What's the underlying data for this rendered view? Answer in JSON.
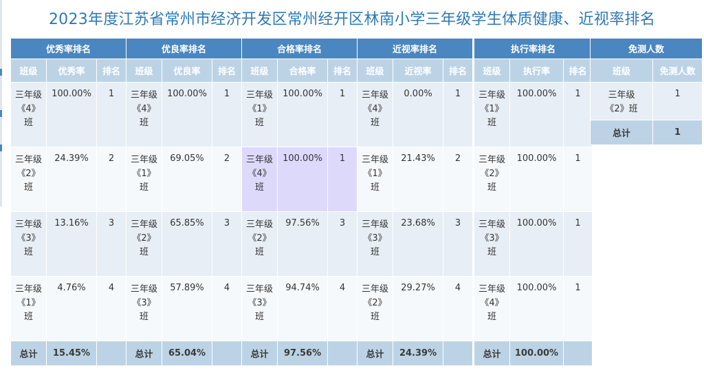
{
  "title": "2023年度江苏省常州市经济开发区常州经开区林南小学三年级学生体质健康、近视率排名",
  "col_headers": {
    "class": "班级",
    "rank": "排名"
  },
  "groups": [
    {
      "name": "优秀率排名",
      "metric": "优秀率",
      "rows": [
        {
          "class": "三年级《4》班",
          "value": "100.00%",
          "rank": "1"
        },
        {
          "class": "三年级《2》班",
          "value": "24.39%",
          "rank": "2"
        },
        {
          "class": "三年级《3》班",
          "value": "13.16%",
          "rank": "3"
        },
        {
          "class": "三年级《1》班",
          "value": "4.76%",
          "rank": "4"
        }
      ],
      "total_label": "总计",
      "total": "15.45%"
    },
    {
      "name": "优良率排名",
      "metric": "优良率",
      "rows": [
        {
          "class": "三年级《4》班",
          "value": "100.00%",
          "rank": "1"
        },
        {
          "class": "三年级《1》班",
          "value": "69.05%",
          "rank": "2"
        },
        {
          "class": "三年级《2》班",
          "value": "65.85%",
          "rank": "3"
        },
        {
          "class": "三年级《3》班",
          "value": "57.89%",
          "rank": "4"
        }
      ],
      "total_label": "总计",
      "total": "65.04%"
    },
    {
      "name": "合格率排名",
      "metric": "合格率",
      "rows": [
        {
          "class": "三年级《1》班",
          "value": "100.00%",
          "rank": "1"
        },
        {
          "class": "三年级《4》班",
          "value": "100.00%",
          "rank": "1"
        },
        {
          "class": "三年级《2》班",
          "value": "97.56%",
          "rank": "3"
        },
        {
          "class": "三年级《3》班",
          "value": "94.74%",
          "rank": "4"
        }
      ],
      "total_label": "总计",
      "total": "97.56%"
    },
    {
      "name": "近视率排名",
      "metric": "近视率",
      "rows": [
        {
          "class": "三年级《4》班",
          "value": "0.00%",
          "rank": "1"
        },
        {
          "class": "三年级《1》班",
          "value": "21.43%",
          "rank": "2"
        },
        {
          "class": "三年级《3》班",
          "value": "23.68%",
          "rank": "3"
        },
        {
          "class": "三年级《2》班",
          "value": "29.27%",
          "rank": "4"
        }
      ],
      "total_label": "总计",
      "total": "24.39%"
    },
    {
      "name": "执行率排名",
      "metric": "执行率",
      "rows": [
        {
          "class": "三年级《1》班",
          "value": "100.00%",
          "rank": "1"
        },
        {
          "class": "三年级《2》班",
          "value": "100.00%",
          "rank": "1"
        },
        {
          "class": "三年级《3》班",
          "value": "100.00%",
          "rank": "1"
        },
        {
          "class": "三年级《4》班",
          "value": "100.00%",
          "rank": "1"
        }
      ],
      "total_label": "总计",
      "total": "100.00%"
    }
  ],
  "exempt": {
    "name": "免测人数",
    "headers": [
      "班级",
      "免测人数"
    ],
    "rows": [
      {
        "class": "三年级《2》班",
        "count": "1"
      }
    ],
    "total_label": "总计",
    "total": "1"
  },
  "colors": {
    "group_header": "#4a86bf",
    "col_header": "#bcd3e6",
    "row_odd": "#e8eef5",
    "row_even": "#f6f9fc",
    "highlight": "#ddd9fb",
    "title": "#2e79b6"
  }
}
